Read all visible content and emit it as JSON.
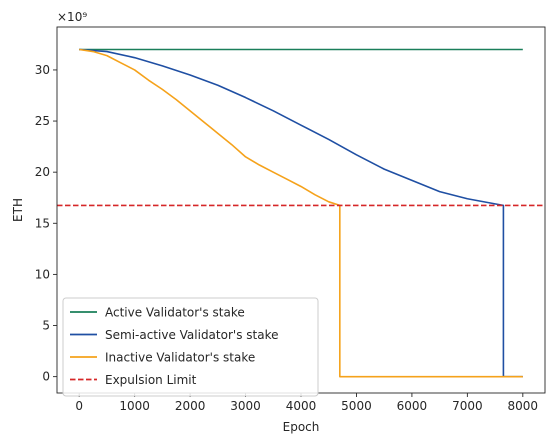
{
  "chart_data": {
    "type": "line",
    "xlabel": "Epoch",
    "ylabel": "ETH",
    "y_multiplier_label": "×10⁹",
    "xlim": [
      -400,
      8400
    ],
    "ylim": [
      -1.6,
      34.2
    ],
    "x_ticks": [
      0,
      1000,
      2000,
      3000,
      4000,
      5000,
      6000,
      7000,
      8000
    ],
    "y_ticks": [
      0,
      5,
      10,
      15,
      20,
      25,
      30
    ],
    "grid": false,
    "legend_position": "lower-left",
    "series": [
      {
        "name": "Active Validator's stake",
        "color": "#1a7f5a",
        "style": "solid",
        "x": [
          0,
          8000
        ],
        "y": [
          32,
          32
        ]
      },
      {
        "name": "Semi-active Validator's stake",
        "color": "#1f4fa3",
        "style": "solid",
        "x": [
          0,
          500,
          1000,
          1500,
          2000,
          2500,
          3000,
          3500,
          4000,
          4500,
          5000,
          5500,
          6000,
          6500,
          7000,
          7500,
          7650,
          7650,
          8000
        ],
        "y": [
          32,
          31.8,
          31.2,
          30.4,
          29.5,
          28.5,
          27.3,
          26.0,
          24.6,
          23.2,
          21.7,
          20.3,
          19.2,
          18.1,
          17.4,
          16.9,
          16.75,
          0,
          0
        ]
      },
      {
        "name": "Inactive Validator's stake",
        "color": "#f5a21b",
        "style": "solid",
        "x": [
          0,
          250,
          500,
          750,
          1000,
          1250,
          1500,
          1750,
          2000,
          2250,
          2500,
          2750,
          3000,
          3250,
          3500,
          3750,
          4000,
          4250,
          4500,
          4700,
          4700,
          8000
        ],
        "y": [
          32,
          31.8,
          31.4,
          30.7,
          30.0,
          29.0,
          28.1,
          27.1,
          26.0,
          24.9,
          23.8,
          22.7,
          21.5,
          20.7,
          20.0,
          19.3,
          18.6,
          17.8,
          17.1,
          16.75,
          0,
          0
        ]
      },
      {
        "name": "Expulsion Limit",
        "color": "#d62728",
        "style": "dashed",
        "x": [
          -400,
          8400
        ],
        "y": [
          16.75,
          16.75
        ]
      }
    ]
  }
}
